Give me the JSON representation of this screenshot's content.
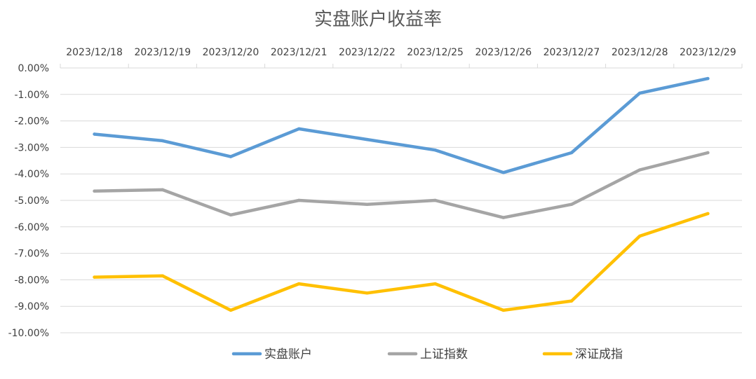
{
  "chart_data": {
    "type": "line",
    "title": "实盘账户收益率",
    "categories": [
      "2023/12/18",
      "2023/12/19",
      "2023/12/20",
      "2023/12/21",
      "2023/12/22",
      "2023/12/25",
      "2023/12/26",
      "2023/12/27",
      "2023/12/28",
      "2023/12/29"
    ],
    "y_tick_labels": [
      "0.00%",
      "-1.00%",
      "-2.00%",
      "-3.00%",
      "-4.00%",
      "-5.00%",
      "-6.00%",
      "-7.00%",
      "-8.00%",
      "-9.00%",
      "-10.00%"
    ],
    "ylim": [
      -10,
      0
    ],
    "y_unit": "%",
    "x_axis_position": "top",
    "grid": true,
    "legend_position": "bottom",
    "series": [
      {
        "name": "实盘账户",
        "color": "#5b9bd5",
        "values": [
          -2.5,
          -2.75,
          -3.35,
          -2.3,
          -2.7,
          -3.1,
          -3.95,
          -3.2,
          -0.95,
          -0.4
        ]
      },
      {
        "name": "上证指数",
        "color": "#a5a5a5",
        "values": [
          -4.65,
          -4.6,
          -5.55,
          -5.0,
          -5.15,
          -5.0,
          -5.65,
          -5.15,
          -3.85,
          -3.2
        ]
      },
      {
        "name": "深证成指",
        "color": "#ffc000",
        "values": [
          -7.9,
          -7.85,
          -9.15,
          -8.15,
          -8.5,
          -8.15,
          -9.15,
          -8.8,
          -6.35,
          -5.5
        ]
      }
    ]
  }
}
